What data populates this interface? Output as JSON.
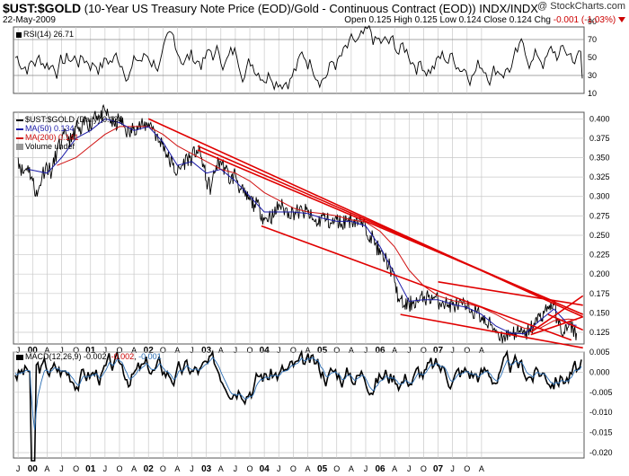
{
  "header": {
    "symbol": "$UST:$GOLD",
    "description": "(10-Year US Treasury Note Price (EOD)/Gold - Continuous Contract (EOD)) INDX/INDX",
    "date": "22-May-2009",
    "brand": "@ StockCharts.com",
    "ohlc": {
      "open_label": "Open",
      "open": "0.125",
      "high_label": "High",
      "high": "0.125",
      "low_label": "Low",
      "low": "0.124",
      "close_label": "Close",
      "close": "0.124",
      "chg_label": "Chg",
      "chg": "-0.001 (-1.03%)"
    }
  },
  "colors": {
    "price": "#000000",
    "ma50": "#1a1aa8",
    "ma200": "#d01010",
    "trend": "#e00000",
    "macd": "#000000",
    "signal": "#2a6db3",
    "grid": "#c8c8c8"
  },
  "chart_data": [
    {
      "type": "line",
      "name": "rsi_panel",
      "title": "RSI(14) 26.71",
      "ylim": [
        10,
        90
      ],
      "yticks": [
        10,
        30,
        50,
        70,
        90
      ],
      "hlines": [
        30,
        70
      ],
      "series": [
        {
          "name": "RSI(14)",
          "last": 26.71
        }
      ]
    },
    {
      "type": "line",
      "name": "price_panel",
      "legend": {
        "main": "$UST:$GOLD (Daily) 0.124",
        "ma50": "MA(50) 0.134",
        "ma200": "MA(200) 0.141",
        "volume": "Volume undef"
      },
      "ylim": [
        0.11,
        0.42
      ],
      "yticks": [
        "0.400",
        "0.375",
        "0.350",
        "0.325",
        "0.300",
        "0.275",
        "0.250",
        "0.225",
        "0.200",
        "0.175",
        "0.150",
        "0.125"
      ],
      "x_years": [
        "00",
        "01",
        "02",
        "03",
        "04",
        "05",
        "06",
        "07",
        "08",
        "09"
      ],
      "x_months": [
        "J",
        "O",
        "A",
        "J",
        "O",
        "A",
        "J",
        "O",
        "A",
        "J",
        "O",
        "A",
        "J",
        "O",
        "A",
        "J",
        "O",
        "A",
        "J",
        "O",
        "A",
        "J",
        "O",
        "A",
        "J",
        "O",
        "A",
        "J",
        "O",
        "A",
        "J",
        "O",
        "A"
      ],
      "series": [
        {
          "name": "$UST:$GOLD",
          "points": [
            [
              1999.75,
              0.35
            ],
            [
              1999.83,
              0.33
            ],
            [
              1999.92,
              0.34
            ],
            [
              2000.0,
              0.32
            ],
            [
              2000.08,
              0.3
            ],
            [
              2000.17,
              0.33
            ],
            [
              2000.25,
              0.34
            ],
            [
              2000.33,
              0.33
            ],
            [
              2000.42,
              0.36
            ],
            [
              2000.5,
              0.37
            ],
            [
              2000.58,
              0.38
            ],
            [
              2000.67,
              0.37
            ],
            [
              2000.75,
              0.39
            ],
            [
              2000.83,
              0.38
            ],
            [
              2000.92,
              0.4
            ],
            [
              2001.0,
              0.39
            ],
            [
              2001.08,
              0.41
            ],
            [
              2001.17,
              0.4
            ],
            [
              2001.25,
              0.41
            ],
            [
              2001.33,
              0.4
            ],
            [
              2001.42,
              0.39
            ],
            [
              2001.5,
              0.4
            ],
            [
              2001.58,
              0.39
            ],
            [
              2001.67,
              0.38
            ],
            [
              2001.75,
              0.39
            ],
            [
              2001.83,
              0.39
            ],
            [
              2001.92,
              0.39
            ],
            [
              2002.0,
              0.395
            ],
            [
              2002.08,
              0.39
            ],
            [
              2002.17,
              0.37
            ],
            [
              2002.25,
              0.37
            ],
            [
              2002.33,
              0.35
            ],
            [
              2002.42,
              0.34
            ],
            [
              2002.5,
              0.33
            ],
            [
              2002.58,
              0.34
            ],
            [
              2002.67,
              0.35
            ],
            [
              2002.75,
              0.35
            ],
            [
              2002.83,
              0.36
            ],
            [
              2002.92,
              0.35
            ],
            [
              2003.0,
              0.32
            ],
            [
              2003.08,
              0.31
            ],
            [
              2003.17,
              0.34
            ],
            [
              2003.25,
              0.345
            ],
            [
              2003.33,
              0.335
            ],
            [
              2003.42,
              0.32
            ],
            [
              2003.5,
              0.33
            ],
            [
              2003.58,
              0.31
            ],
            [
              2003.67,
              0.3
            ],
            [
              2003.75,
              0.295
            ],
            [
              2003.83,
              0.29
            ],
            [
              2003.92,
              0.285
            ],
            [
              2004.0,
              0.27
            ],
            [
              2004.08,
              0.275
            ],
            [
              2004.17,
              0.275
            ],
            [
              2004.25,
              0.29
            ],
            [
              2004.33,
              0.285
            ],
            [
              2004.42,
              0.28
            ],
            [
              2004.5,
              0.28
            ],
            [
              2004.58,
              0.28
            ],
            [
              2004.67,
              0.28
            ],
            [
              2004.75,
              0.28
            ],
            [
              2004.83,
              0.27
            ],
            [
              2004.92,
              0.265
            ],
            [
              2005.0,
              0.275
            ],
            [
              2005.08,
              0.27
            ],
            [
              2005.17,
              0.265
            ],
            [
              2005.25,
              0.27
            ],
            [
              2005.33,
              0.265
            ],
            [
              2005.42,
              0.27
            ],
            [
              2005.5,
              0.27
            ],
            [
              2005.58,
              0.27
            ],
            [
              2005.67,
              0.265
            ],
            [
              2005.75,
              0.26
            ],
            [
              2005.83,
              0.25
            ],
            [
              2005.92,
              0.24
            ],
            [
              2006.0,
              0.225
            ],
            [
              2006.08,
              0.22
            ],
            [
              2006.17,
              0.21
            ],
            [
              2006.25,
              0.19
            ],
            [
              2006.33,
              0.165
            ],
            [
              2006.42,
              0.16
            ],
            [
              2006.5,
              0.16
            ],
            [
              2006.58,
              0.165
            ],
            [
              2006.67,
              0.165
            ],
            [
              2006.75,
              0.17
            ],
            [
              2006.83,
              0.17
            ],
            [
              2006.92,
              0.17
            ],
            [
              2007.0,
              0.165
            ],
            [
              2007.08,
              0.165
            ],
            [
              2007.17,
              0.16
            ],
            [
              2007.25,
              0.16
            ],
            [
              2007.33,
              0.16
            ],
            [
              2007.42,
              0.16
            ],
            [
              2007.5,
              0.155
            ],
            [
              2007.58,
              0.155
            ],
            [
              2007.67,
              0.15
            ],
            [
              2007.75,
              0.145
            ],
            [
              2007.83,
              0.135
            ],
            [
              2007.92,
              0.135
            ],
            [
              2008.0,
              0.128
            ],
            [
              2008.08,
              0.12
            ],
            [
              2008.17,
              0.12
            ],
            [
              2008.25,
              0.125
            ],
            [
              2008.33,
              0.125
            ],
            [
              2008.42,
              0.125
            ],
            [
              2008.5,
              0.12
            ],
            [
              2008.58,
              0.13
            ],
            [
              2008.67,
              0.135
            ],
            [
              2008.75,
              0.145
            ],
            [
              2008.83,
              0.15
            ],
            [
              2008.92,
              0.16
            ],
            [
              2009.0,
              0.16
            ],
            [
              2009.08,
              0.135
            ],
            [
              2009.17,
              0.125
            ],
            [
              2009.25,
              0.132
            ],
            [
              2009.33,
              0.13
            ],
            [
              2009.39,
              0.124
            ]
          ]
        },
        {
          "name": "MA(50)",
          "points": [
            [
              1999.92,
              0.335
            ],
            [
              2000.25,
              0.33
            ],
            [
              2000.5,
              0.35
            ],
            [
              2000.75,
              0.375
            ],
            [
              2001.0,
              0.385
            ],
            [
              2001.25,
              0.4
            ],
            [
              2001.5,
              0.395
            ],
            [
              2001.75,
              0.385
            ],
            [
              2002.0,
              0.39
            ],
            [
              2002.25,
              0.37
            ],
            [
              2002.5,
              0.34
            ],
            [
              2002.75,
              0.345
            ],
            [
              2003.0,
              0.33
            ],
            [
              2003.25,
              0.335
            ],
            [
              2003.5,
              0.32
            ],
            [
              2003.75,
              0.3
            ],
            [
              2004.0,
              0.28
            ],
            [
              2004.25,
              0.28
            ],
            [
              2004.5,
              0.28
            ],
            [
              2004.75,
              0.278
            ],
            [
              2005.0,
              0.272
            ],
            [
              2005.25,
              0.268
            ],
            [
              2005.5,
              0.268
            ],
            [
              2005.75,
              0.262
            ],
            [
              2006.0,
              0.235
            ],
            [
              2006.25,
              0.2
            ],
            [
              2006.5,
              0.165
            ],
            [
              2006.75,
              0.167
            ],
            [
              2007.0,
              0.167
            ],
            [
              2007.25,
              0.161
            ],
            [
              2007.5,
              0.157
            ],
            [
              2007.75,
              0.148
            ],
            [
              2008.0,
              0.133
            ],
            [
              2008.25,
              0.124
            ],
            [
              2008.5,
              0.123
            ],
            [
              2008.75,
              0.14
            ],
            [
              2009.0,
              0.155
            ],
            [
              2009.25,
              0.135
            ],
            [
              2009.39,
              0.134
            ]
          ]
        },
        {
          "name": "MA(200)",
          "points": [
            [
              2000.42,
              0.34
            ],
            [
              2000.75,
              0.35
            ],
            [
              2001.0,
              0.365
            ],
            [
              2001.25,
              0.38
            ],
            [
              2001.5,
              0.39
            ],
            [
              2001.75,
              0.39
            ],
            [
              2002.0,
              0.39
            ],
            [
              2002.25,
              0.38
            ],
            [
              2002.5,
              0.365
            ],
            [
              2002.75,
              0.355
            ],
            [
              2003.0,
              0.345
            ],
            [
              2003.25,
              0.335
            ],
            [
              2003.5,
              0.33
            ],
            [
              2003.75,
              0.32
            ],
            [
              2004.0,
              0.305
            ],
            [
              2004.25,
              0.295
            ],
            [
              2004.5,
              0.285
            ],
            [
              2004.75,
              0.28
            ],
            [
              2005.0,
              0.278
            ],
            [
              2005.25,
              0.275
            ],
            [
              2005.5,
              0.27
            ],
            [
              2005.75,
              0.267
            ],
            [
              2006.0,
              0.255
            ],
            [
              2006.25,
              0.235
            ],
            [
              2006.5,
              0.205
            ],
            [
              2006.75,
              0.185
            ],
            [
              2007.0,
              0.172
            ],
            [
              2007.25,
              0.166
            ],
            [
              2007.5,
              0.162
            ],
            [
              2007.75,
              0.157
            ],
            [
              2008.0,
              0.148
            ],
            [
              2008.25,
              0.138
            ],
            [
              2008.5,
              0.13
            ],
            [
              2008.75,
              0.13
            ],
            [
              2009.0,
              0.14
            ],
            [
              2009.25,
              0.142
            ],
            [
              2009.39,
              0.141
            ]
          ]
        }
      ],
      "trendlines": [
        [
          [
            2002.0,
            0.4
          ],
          [
            2009.5,
            0.145
          ]
        ],
        [
          [
            2002.85,
            0.365
          ],
          [
            2009.5,
            0.148
          ]
        ],
        [
          [
            2002.85,
            0.36
          ],
          [
            2009.0,
            0.165
          ]
        ],
        [
          [
            2003.95,
            0.262
          ],
          [
            2009.3,
            0.115
          ]
        ],
        [
          [
            2006.35,
            0.148
          ],
          [
            2009.5,
            0.105
          ]
        ],
        [
          [
            2007.0,
            0.19
          ],
          [
            2009.5,
            0.16
          ]
        ],
        [
          [
            2008.6,
            0.125
          ],
          [
            2009.5,
            0.172
          ]
        ],
        [
          [
            2008.6,
            0.122
          ],
          [
            2009.5,
            0.145
          ]
        ],
        [
          [
            2008.9,
            0.148
          ],
          [
            2009.5,
            0.128
          ]
        ]
      ]
    },
    {
      "type": "line",
      "name": "macd_panel",
      "title": "MACD(12,26,9) -0.002, -0.002, -0.001",
      "title_parts": {
        "name": "MACD(12,26,9)",
        "v1": "-0.002",
        "v2": "-0.002",
        "v3": "-0.001"
      },
      "ylim": [
        -0.02,
        0.005
      ],
      "yticks": [
        "0.005",
        "0.000",
        "-0.005",
        "-0.010",
        "-0.015",
        "-0.020"
      ],
      "series": [
        {
          "name": "MACD",
          "min": -0.022,
          "min_x": 2000.0
        },
        {
          "name": "Signal"
        }
      ]
    }
  ]
}
